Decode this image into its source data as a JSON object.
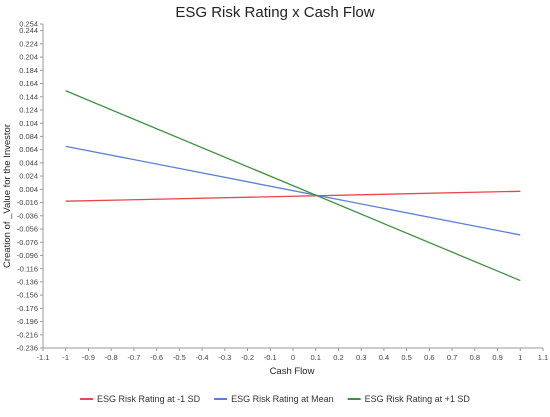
{
  "chart_data": {
    "type": "line",
    "title": "ESG Risk Rating x Cash Flow",
    "xlabel": "Cash Flow",
    "ylabel": "Creation of _Value for the Investor",
    "xlim": [
      -1.1,
      1.1
    ],
    "ylim": [
      -0.236,
      0.254
    ],
    "x_ticks": [
      "-1.1",
      "-1",
      "-0.9",
      "-0.8",
      "-0.7",
      "-0.6",
      "-0.5",
      "-0.4",
      "-0.3",
      "-0.2",
      "-0.1",
      "0",
      "0.1",
      "0.2",
      "0.3",
      "0.4",
      "0.5",
      "0.6",
      "0.7",
      "0.8",
      "0.9",
      "1",
      "1.1"
    ],
    "y_ticks": [
      "0.254",
      "0.244",
      "0.224",
      "0.204",
      "0.184",
      "0.164",
      "0.144",
      "0.124",
      "0.104",
      "0.084",
      "0.064",
      "0.044",
      "0.024",
      "0.004",
      "-0.016",
      "-0.036",
      "-0.056",
      "-0.076",
      "-0.096",
      "-0.116",
      "-0.136",
      "-0.156",
      "-0.176",
      "-0.196",
      "-0.216",
      "-0.236"
    ],
    "grid": false,
    "legend_position": "bottom",
    "series": [
      {
        "name": "ESG Risk Rating at -1 SD",
        "color": "#e8474f",
        "x": [
          -1,
          1
        ],
        "y": [
          -0.014,
          0.001
        ]
      },
      {
        "name": "ESG Risk Rating at Mean",
        "color": "#5b7fd4",
        "x": [
          -1,
          1
        ],
        "y": [
          0.069,
          -0.065
        ]
      },
      {
        "name": "ESG Risk Rating at +1 SD",
        "color": "#3e9140",
        "x": [
          -1,
          1
        ],
        "y": [
          0.153,
          -0.134
        ]
      }
    ]
  }
}
